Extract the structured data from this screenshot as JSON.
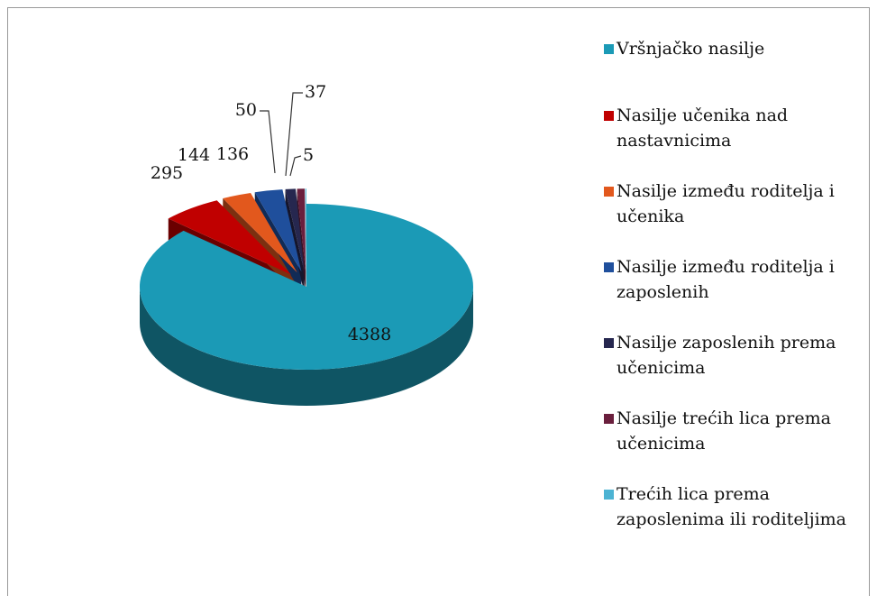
{
  "chart_data": {
    "type": "pie",
    "categories": [
      "Vršnjačko nasilje",
      "Nasilje učenika nad nastavnicima",
      "Nasilje između roditelja i učenika",
      "Nasilje između roditelja i zaposlenih",
      "Nasilje zaposlenih prema učenicima",
      "Nasilje trećih lica prema učenicima",
      "Trećih lica prema zaposlenima ili roditeljima"
    ],
    "values": [
      4388,
      295,
      144,
      136,
      50,
      37,
      5
    ],
    "colors": [
      "#1b9ab6",
      "#c00000",
      "#e2581d",
      "#1f4f9c",
      "#26274f",
      "#6a1f3d",
      "#4cb3d3"
    ],
    "legend": "right"
  }
}
